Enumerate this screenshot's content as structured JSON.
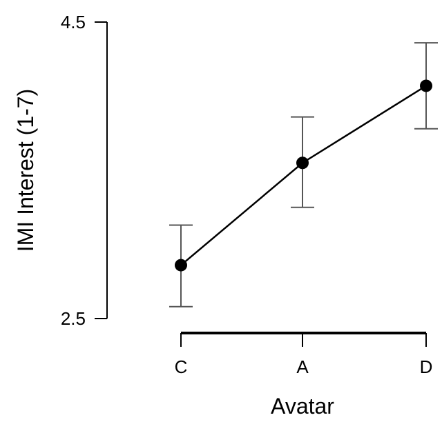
{
  "chart_data": {
    "type": "line",
    "categories": [
      "C",
      "A",
      "D"
    ],
    "series": [
      {
        "values": [
          2.86,
          3.55,
          4.07
        ],
        "error_low": [
          2.58,
          3.25,
          3.78
        ],
        "error_high": [
          3.13,
          3.86,
          4.36
        ]
      }
    ],
    "xlabel": "Avatar",
    "ylabel": "IMI Interest (1-7)",
    "ylim": [
      2.5,
      4.5
    ],
    "yticks": [
      "2.5",
      "4.5"
    ],
    "grid": false,
    "marker": "filled-circle",
    "line_color": "#000000"
  }
}
